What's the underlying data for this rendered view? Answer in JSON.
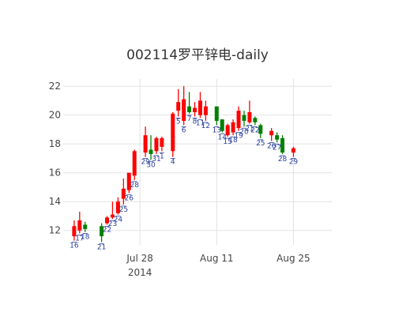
{
  "chart_data": {
    "type": "candlestick",
    "title": "002114罗平锌电-daily",
    "xlabel": "",
    "ylabel": "",
    "ylim": [
      11.0,
      22.5
    ],
    "yticks": [
      12,
      14,
      16,
      18,
      20,
      22
    ],
    "xticks": [
      {
        "date": "2014-07-28",
        "label": "Jul 28",
        "sublabel": "2014"
      },
      {
        "date": "2014-08-11",
        "label": "Aug 11",
        "sublabel": ""
      },
      {
        "date": "2014-08-25",
        "label": "Aug 25",
        "sublabel": ""
      }
    ],
    "xrange": [
      "2014-07-14",
      "2014-09-01"
    ],
    "grid": true,
    "up_color": "#ff0000",
    "down_color": "#008000",
    "label_color": "#2a3f9f",
    "candles": [
      {
        "date": "2014-07-16",
        "open": 11.6,
        "high": 12.7,
        "low": 11.3,
        "close": 12.3,
        "labels": [
          "16"
        ]
      },
      {
        "date": "2014-07-17",
        "open": 12.0,
        "high": 13.3,
        "low": 11.8,
        "close": 12.7,
        "labels": [
          "17"
        ]
      },
      {
        "date": "2014-07-18",
        "open": 12.4,
        "high": 12.6,
        "low": 11.9,
        "close": 12.1,
        "labels": [
          "18"
        ]
      },
      {
        "date": "2014-07-21",
        "open": 12.3,
        "high": 12.5,
        "low": 11.2,
        "close": 11.6,
        "labels": [
          "21"
        ]
      },
      {
        "date": "2014-07-22",
        "open": 12.5,
        "high": 13.0,
        "low": 12.4,
        "close": 12.9,
        "labels": [
          "22"
        ]
      },
      {
        "date": "2014-07-23",
        "open": 12.9,
        "high": 14.0,
        "low": 12.8,
        "close": 13.1,
        "labels": [
          "23"
        ]
      },
      {
        "date": "2014-07-24",
        "open": 13.2,
        "high": 14.3,
        "low": 13.1,
        "close": 14.0,
        "labels": [
          "24"
        ]
      },
      {
        "date": "2014-07-25",
        "open": 14.2,
        "high": 15.6,
        "low": 13.8,
        "close": 14.9,
        "labels": [
          "25"
        ]
      },
      {
        "date": "2014-07-26",
        "open": 14.8,
        "high": 16.0,
        "low": 14.6,
        "close": 16.0,
        "labels": [
          "26"
        ]
      },
      {
        "date": "2014-07-27",
        "open": 15.8,
        "high": 17.6,
        "low": 15.5,
        "close": 17.5,
        "labels": [
          "28"
        ]
      },
      {
        "date": "2014-07-29",
        "open": 17.4,
        "high": 19.2,
        "low": 17.1,
        "close": 18.6,
        "labels": [
          "29"
        ]
      },
      {
        "date": "2014-07-30",
        "open": 17.6,
        "high": 18.6,
        "low": 16.9,
        "close": 17.3,
        "labels": [
          "30"
        ]
      },
      {
        "date": "2014-07-31",
        "open": 17.5,
        "high": 18.5,
        "low": 17.3,
        "close": 18.4,
        "labels": [
          "31"
        ]
      },
      {
        "date": "2014-08-01",
        "open": 17.8,
        "high": 18.5,
        "low": 17.5,
        "close": 18.4,
        "labels": [
          "1"
        ]
      },
      {
        "date": "2014-08-03",
        "open": 17.5,
        "high": 20.2,
        "low": 17.1,
        "close": 20.1,
        "labels": [
          "4"
        ]
      },
      {
        "date": "2014-08-04",
        "open": 20.3,
        "high": 21.8,
        "low": 19.9,
        "close": 20.9,
        "labels": [
          "5"
        ]
      },
      {
        "date": "2014-08-05",
        "open": 19.6,
        "high": 22.0,
        "low": 19.3,
        "close": 21.1,
        "labels": [
          "6"
        ]
      },
      {
        "date": "2014-08-06",
        "open": 20.6,
        "high": 21.6,
        "low": 20.1,
        "close": 20.2,
        "labels": [
          "7"
        ]
      },
      {
        "date": "2014-08-07",
        "open": 20.2,
        "high": 20.9,
        "low": 19.9,
        "close": 20.5,
        "labels": [
          "8"
        ]
      },
      {
        "date": "2014-08-08",
        "open": 20.0,
        "high": 21.6,
        "low": 19.8,
        "close": 21.0,
        "labels": [
          "11"
        ]
      },
      {
        "date": "2014-08-09",
        "open": 20.0,
        "high": 21.0,
        "low": 19.6,
        "close": 20.6,
        "labels": [
          "12"
        ]
      },
      {
        "date": "2014-08-11",
        "open": 20.6,
        "high": 20.6,
        "low": 19.3,
        "close": 19.6,
        "labels": [
          "13"
        ]
      },
      {
        "date": "2014-08-12",
        "open": 19.7,
        "high": 19.7,
        "low": 18.8,
        "close": 18.9,
        "labels": [
          "14"
        ]
      },
      {
        "date": "2014-08-13",
        "open": 18.6,
        "high": 19.4,
        "low": 18.5,
        "close": 19.3,
        "labels": [
          "15"
        ]
      },
      {
        "date": "2014-08-14",
        "open": 18.8,
        "high": 19.7,
        "low": 18.6,
        "close": 19.5,
        "labels": [
          "18"
        ]
      },
      {
        "date": "2014-08-15",
        "open": 19.1,
        "high": 20.6,
        "low": 18.9,
        "close": 20.3,
        "labels": [
          "19"
        ]
      },
      {
        "date": "2014-08-16",
        "open": 20.0,
        "high": 20.3,
        "low": 19.2,
        "close": 19.6,
        "labels": [
          "20"
        ]
      },
      {
        "date": "2014-08-17",
        "open": 19.5,
        "high": 21.0,
        "low": 19.4,
        "close": 20.2,
        "labels": [
          "21"
        ]
      },
      {
        "date": "2014-08-18",
        "open": 19.8,
        "high": 19.9,
        "low": 19.3,
        "close": 19.5,
        "labels": [
          "22"
        ]
      },
      {
        "date": "2014-08-19",
        "open": 19.3,
        "high": 19.4,
        "low": 18.4,
        "close": 18.7,
        "labels": [
          "25"
        ]
      },
      {
        "date": "2014-08-21",
        "open": 18.6,
        "high": 19.1,
        "low": 18.2,
        "close": 18.9,
        "labels": [
          "26"
        ]
      },
      {
        "date": "2014-08-22",
        "open": 18.6,
        "high": 18.8,
        "low": 18.1,
        "close": 18.3,
        "labels": [
          "27"
        ]
      },
      {
        "date": "2014-08-23",
        "open": 18.4,
        "high": 18.6,
        "low": 17.3,
        "close": 17.4,
        "labels": [
          "28"
        ]
      },
      {
        "date": "2014-08-25",
        "open": 17.4,
        "high": 17.8,
        "low": 17.1,
        "close": 17.7,
        "labels": [
          "29"
        ]
      }
    ]
  }
}
